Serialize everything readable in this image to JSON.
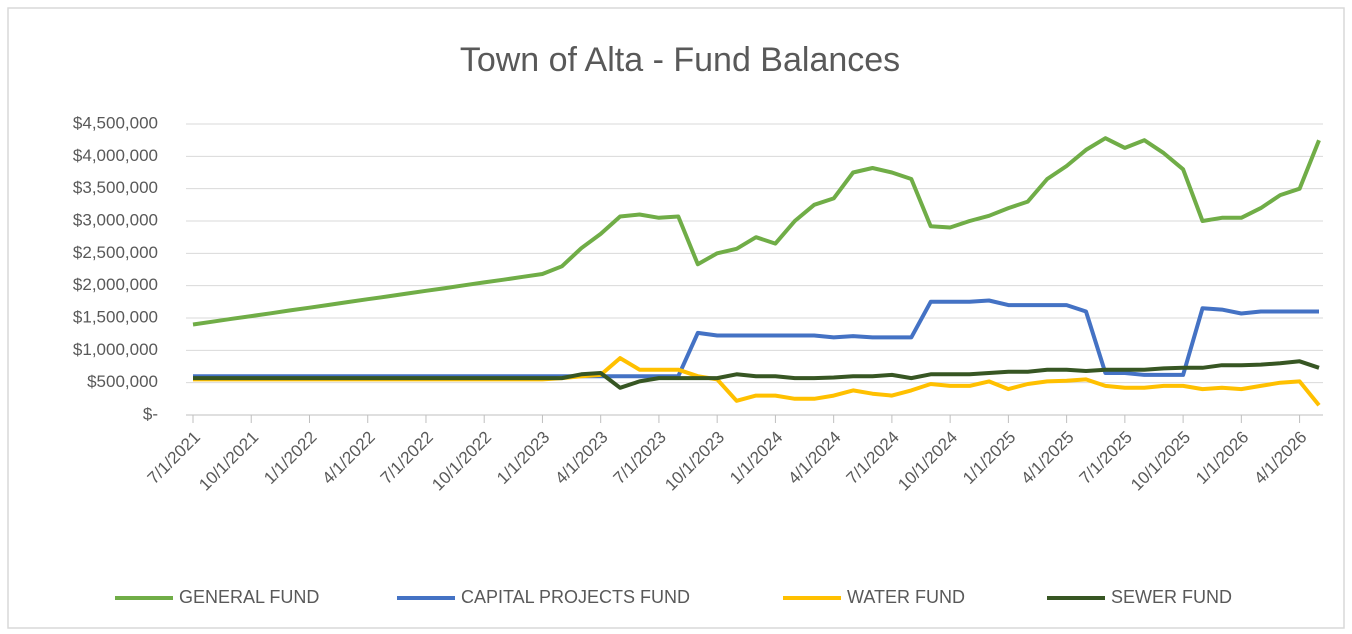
{
  "chart_data": {
    "type": "line",
    "title": "Town of Alta - Fund Balances",
    "categories": [
      "7/1/2021",
      null,
      null,
      "10/1/2021",
      null,
      null,
      "1/1/2022",
      null,
      null,
      "4/1/2022",
      null,
      null,
      "7/1/2022",
      null,
      null,
      "10/1/2022",
      null,
      null,
      "1/1/2023",
      null,
      null,
      "4/1/2023",
      null,
      null,
      "7/1/2023",
      null,
      null,
      "10/1/2023",
      null,
      null,
      "1/1/2024",
      null,
      null,
      "4/1/2024",
      null,
      null,
      "7/1/2024",
      null,
      null,
      "10/1/2024",
      null,
      null,
      "1/1/2025",
      null,
      null,
      "4/1/2025",
      null,
      null,
      "7/1/2025",
      null,
      null,
      "10/1/2025",
      null,
      null,
      "1/1/2026",
      null,
      null,
      "4/1/2026",
      null
    ],
    "series": [
      {
        "name": "GENERAL FUND",
        "color": "#70ad47",
        "values": [
          1400000,
          1443000,
          1487000,
          1530000,
          1573000,
          1617000,
          1660000,
          1703000,
          1747000,
          1790000,
          1833000,
          1877000,
          1920000,
          1963000,
          2007000,
          2050000,
          2093000,
          2137000,
          2180000,
          2300000,
          2580000,
          2800000,
          3070000,
          3100000,
          3050000,
          3070000,
          2330000,
          2500000,
          2570000,
          2750000,
          2650000,
          3000000,
          3250000,
          3350000,
          3750000,
          3820000,
          3750000,
          3650000,
          2920000,
          2900000,
          3000000,
          3080000,
          3200000,
          3300000,
          3650000,
          3850000,
          4100000,
          4280000,
          4130000,
          4250000,
          4050000,
          3800000,
          3000000,
          3050000,
          3050000,
          3200000,
          3400000,
          3500000,
          4250000
        ]
      },
      {
        "name": "CAPITAL PROJECTS FUND",
        "color": "#4472c4",
        "values": [
          600000,
          600000,
          600000,
          600000,
          600000,
          600000,
          600000,
          600000,
          600000,
          600000,
          600000,
          600000,
          600000,
          600000,
          600000,
          600000,
          600000,
          600000,
          600000,
          600000,
          600000,
          600000,
          600000,
          600000,
          600000,
          600000,
          1270000,
          1230000,
          1230000,
          1230000,
          1230000,
          1230000,
          1230000,
          1200000,
          1220000,
          1200000,
          1200000,
          1200000,
          1750000,
          1750000,
          1750000,
          1770000,
          1700000,
          1700000,
          1700000,
          1700000,
          1600000,
          650000,
          650000,
          620000,
          620000,
          620000,
          1650000,
          1630000,
          1570000,
          1600000,
          1600000,
          1600000,
          1600000
        ]
      },
      {
        "name": "WATER FUND",
        "color": "#ffc000",
        "values": [
          550000,
          550000,
          550000,
          550000,
          550000,
          550000,
          550000,
          550000,
          550000,
          550000,
          550000,
          550000,
          550000,
          550000,
          550000,
          550000,
          550000,
          550000,
          550000,
          570000,
          600000,
          620000,
          880000,
          700000,
          700000,
          700000,
          600000,
          550000,
          220000,
          300000,
          300000,
          250000,
          250000,
          300000,
          380000,
          330000,
          300000,
          380000,
          480000,
          450000,
          450000,
          520000,
          400000,
          480000,
          520000,
          530000,
          550000,
          450000,
          420000,
          420000,
          450000,
          450000,
          400000,
          420000,
          400000,
          450000,
          500000,
          520000,
          150000
        ]
      },
      {
        "name": "SEWER FUND",
        "color": "#375623",
        "values": [
          570000,
          570000,
          570000,
          570000,
          570000,
          570000,
          570000,
          570000,
          570000,
          570000,
          570000,
          570000,
          570000,
          570000,
          570000,
          570000,
          570000,
          570000,
          570000,
          570000,
          630000,
          650000,
          420000,
          520000,
          570000,
          570000,
          570000,
          570000,
          630000,
          600000,
          600000,
          570000,
          570000,
          580000,
          600000,
          600000,
          620000,
          570000,
          630000,
          630000,
          630000,
          650000,
          670000,
          670000,
          700000,
          700000,
          680000,
          700000,
          700000,
          700000,
          720000,
          730000,
          730000,
          770000,
          770000,
          780000,
          800000,
          830000,
          730000
        ]
      }
    ],
    "ylim": [
      0,
      4500000
    ],
    "yticks": [
      {
        "value": 0,
        "label": "$-"
      },
      {
        "value": 500000,
        "label": "$500,000"
      },
      {
        "value": 1000000,
        "label": "$1,000,000"
      },
      {
        "value": 1500000,
        "label": "$1,500,000"
      },
      {
        "value": 2000000,
        "label": "$2,000,000"
      },
      {
        "value": 2500000,
        "label": "$2,500,000"
      },
      {
        "value": 3000000,
        "label": "$3,000,000"
      },
      {
        "value": 3500000,
        "label": "$3,500,000"
      },
      {
        "value": 4000000,
        "label": "$4,000,000"
      },
      {
        "value": 4500000,
        "label": "$4,500,000"
      }
    ],
    "grid": true,
    "legend": "bottom"
  }
}
